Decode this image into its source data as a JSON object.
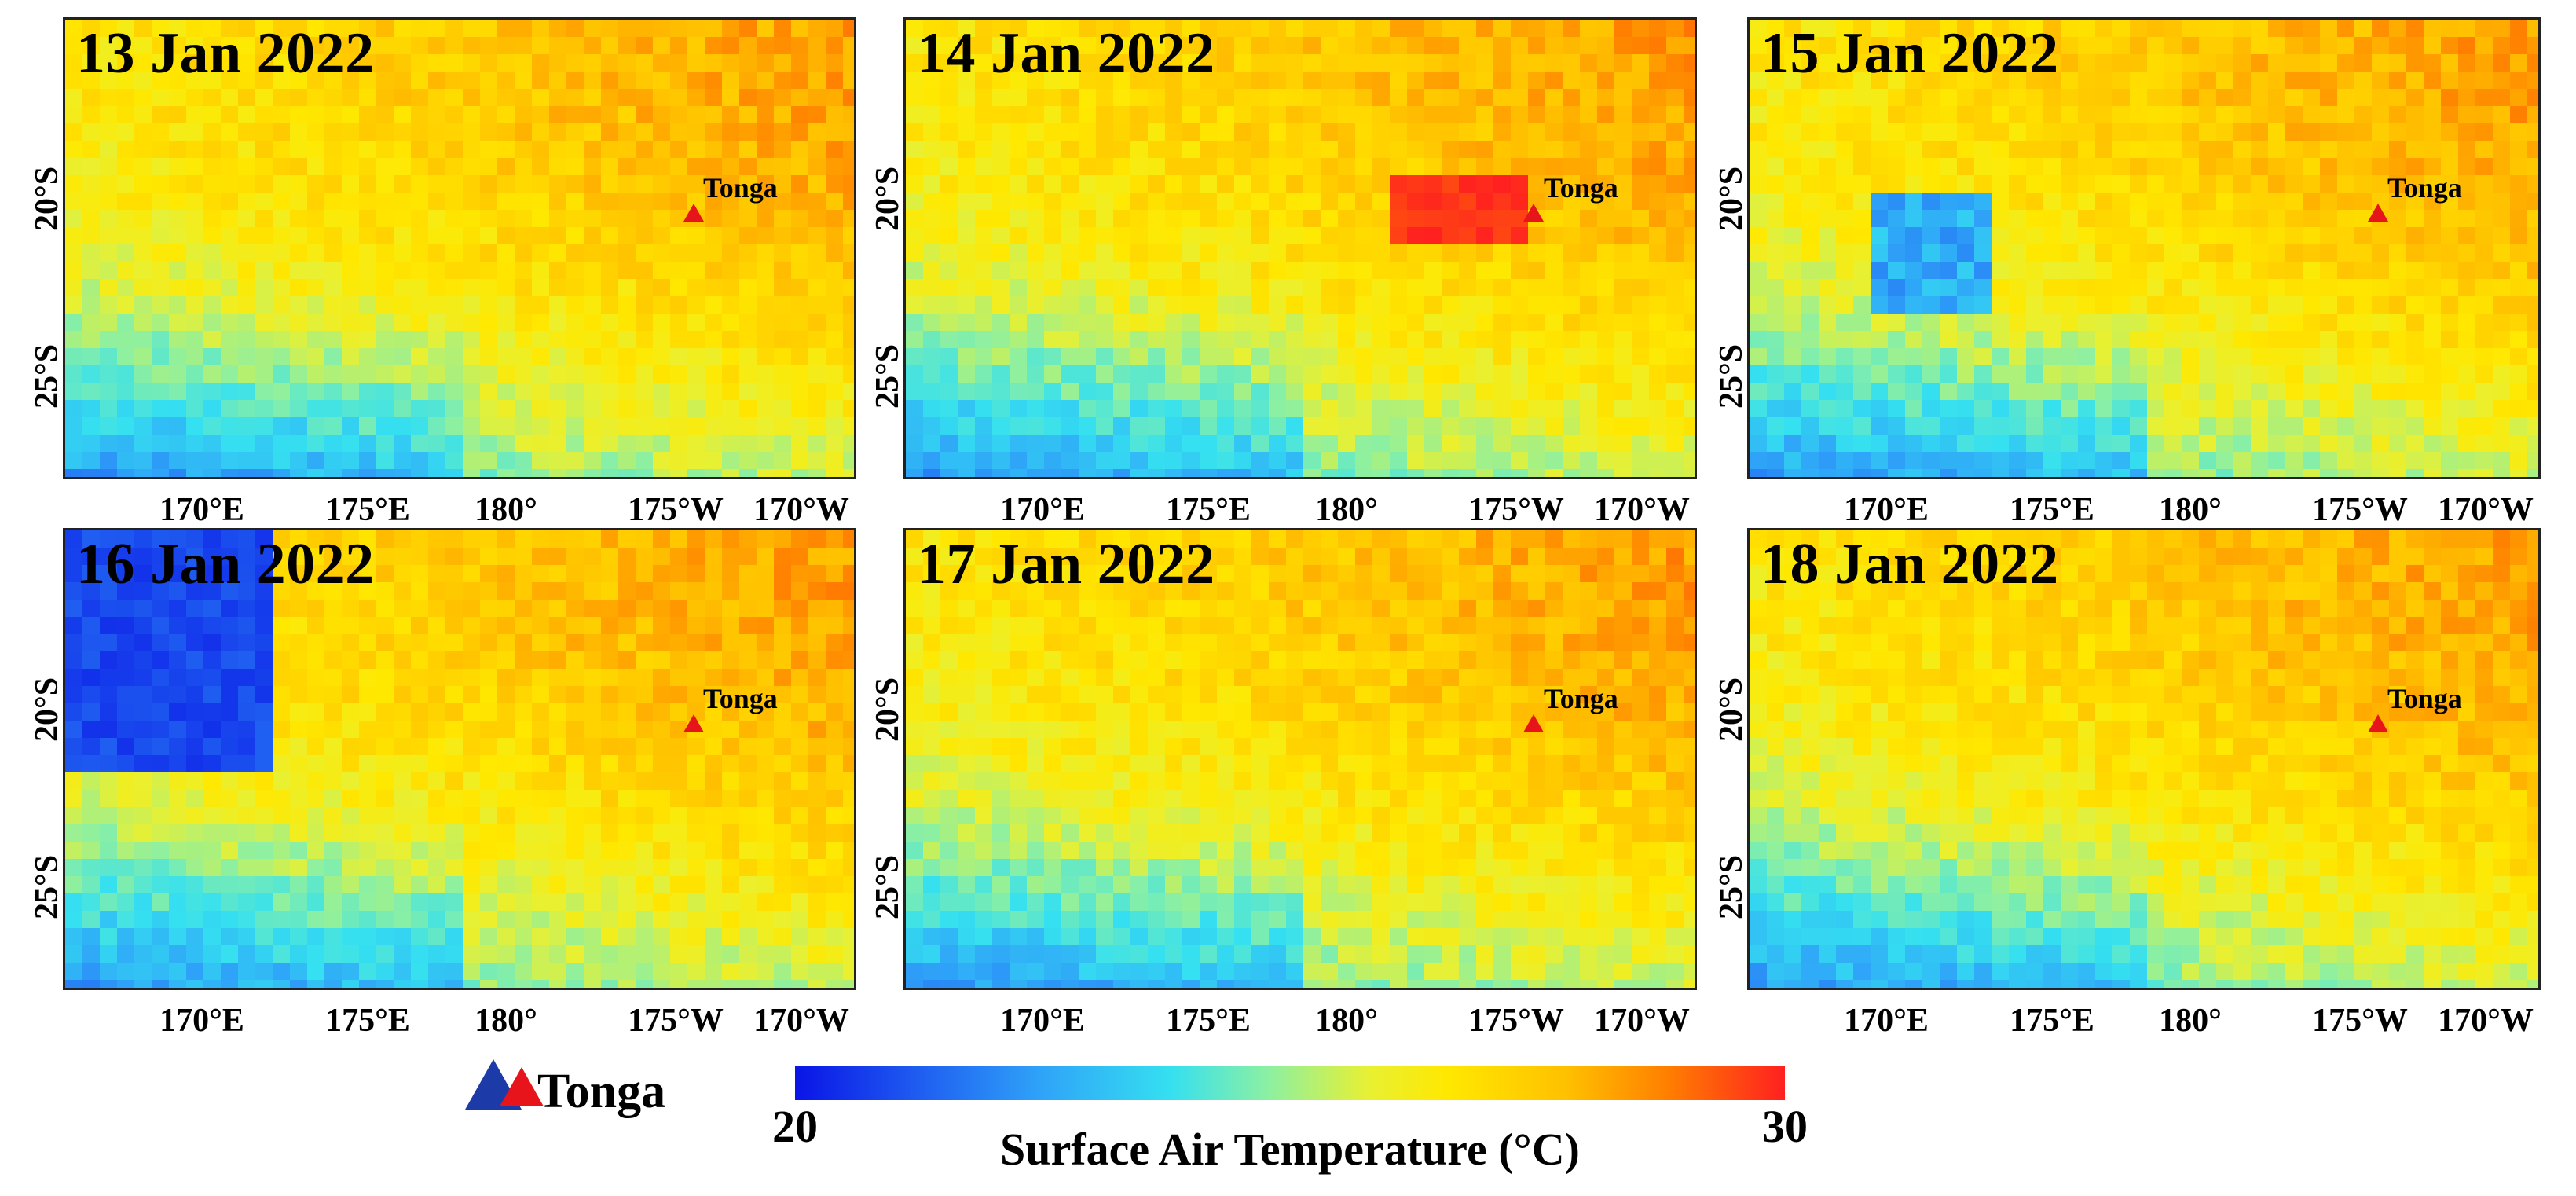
{
  "panels": [
    {
      "date": "13 Jan 2022",
      "seed": 13
    },
    {
      "date": "14 Jan 2022",
      "seed": 14
    },
    {
      "date": "15 Jan 2022",
      "seed": 15
    },
    {
      "date": "16 Jan 2022",
      "seed": 16
    },
    {
      "date": "17 Jan 2022",
      "seed": 17
    },
    {
      "date": "18 Jan 2022",
      "seed": 18
    }
  ],
  "x_ticks": [
    "170°E",
    "175°E",
    "180°",
    "175°W",
    "170°W"
  ],
  "y_ticks": [
    "20°S",
    "25°S"
  ],
  "marker_label": "Tonga",
  "legend": {
    "marker_label": "Tonga"
  },
  "colorbar": {
    "min_label": "20",
    "max_label": "30",
    "title": "Surface Air Temperature (°C)",
    "min": 20,
    "max": 30
  },
  "colors": {
    "marker": "#e8141c",
    "marker_edge": "#1c3aa8"
  }
}
